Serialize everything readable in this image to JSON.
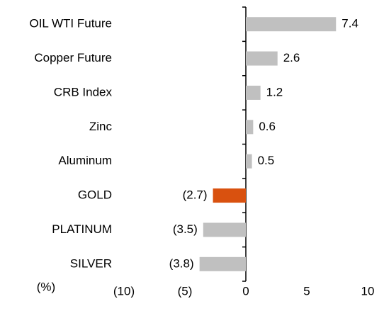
{
  "chart_data": {
    "type": "bar",
    "orientation": "horizontal",
    "x_label": "(%)",
    "categories": [
      "OIL WTI Future",
      "Copper Future",
      "CRB Index",
      "Zinc",
      "Aluminum",
      "GOLD",
      "PLATINUM",
      "SILVER"
    ],
    "values": [
      7.4,
      2.6,
      1.2,
      0.6,
      0.5,
      -2.7,
      -3.5,
      -3.8
    ],
    "value_labels": [
      "7.4",
      "2.6",
      "1.2",
      "0.6",
      "0.5",
      "(2.7)",
      "(3.5)",
      "(3.8)"
    ],
    "colors": [
      "#c0c0c0",
      "#c0c0c0",
      "#c0c0c0",
      "#c0c0c0",
      "#c0c0c0",
      "#d9510f",
      "#c0c0c0",
      "#c0c0c0"
    ],
    "xlim": [
      -10,
      10
    ],
    "xticks": [
      {
        "value": -10,
        "label": "(10)"
      },
      {
        "value": -5,
        "label": "(5)"
      },
      0,
      5,
      10
    ],
    "grid": false
  }
}
